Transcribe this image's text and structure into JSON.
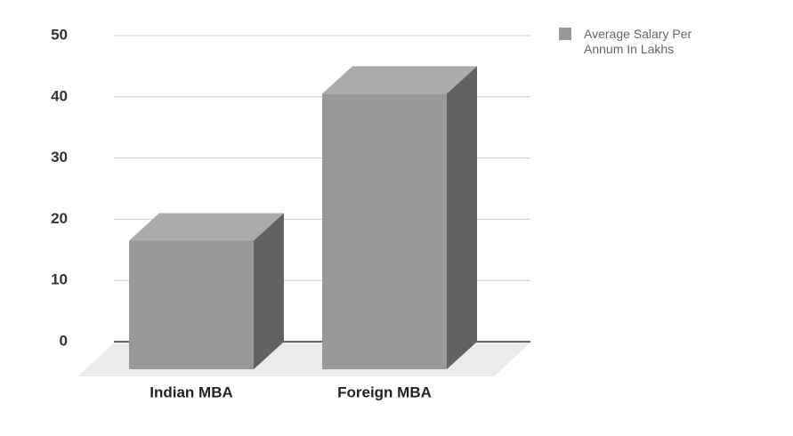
{
  "chart_data": {
    "type": "bar",
    "categories": [
      "Indian MBA",
      "Foreign MBA"
    ],
    "series": [
      {
        "name": "Average Salary Per Annum In Lakhs",
        "color": "#999999",
        "values": [
          21,
          45
        ]
      }
    ],
    "ylim": [
      0,
      50
    ],
    "yticks": [
      0,
      10,
      20,
      30,
      40,
      50
    ],
    "grid": true,
    "legend": "right"
  }
}
